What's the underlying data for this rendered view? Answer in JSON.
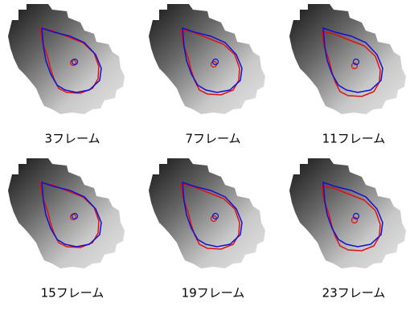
{
  "panels": [
    "3フレーム",
    "7フレーム",
    "11フレーム",
    "15フレーム",
    "19フレーム",
    "23フレーム"
  ]
}
